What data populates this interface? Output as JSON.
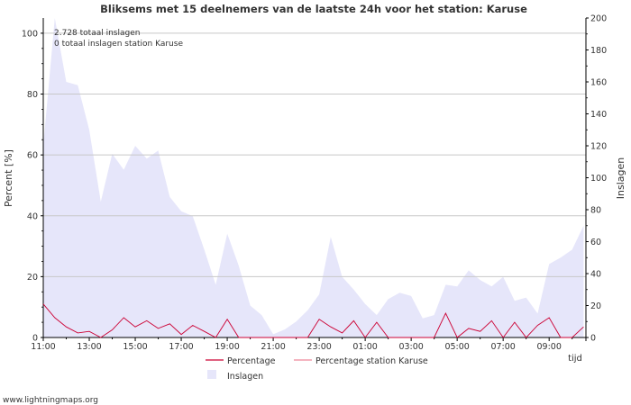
{
  "chart_data": {
    "type": "area",
    "title": "Bliksems met 15 deelnemers van de laatste 24h voor het station: Karuse",
    "xlabel": "tijd",
    "ylabel_left": "Percent   [%]",
    "ylabel_right": "Inslagen",
    "ylim_left": [
      0,
      105
    ],
    "ylim_right": [
      0,
      200
    ],
    "yticks_left": [
      0,
      20,
      40,
      60,
      80,
      100
    ],
    "yticks_right": [
      0,
      20,
      40,
      60,
      80,
      100,
      120,
      140,
      160,
      180,
      200
    ],
    "x_tick_labels": [
      "11:00",
      "13:00",
      "15:00",
      "17:00",
      "19:00",
      "21:00",
      "23:00",
      "01:00",
      "03:00",
      "05:00",
      "07:00",
      "09:00"
    ],
    "x_range_hours": [
      0,
      23.6
    ],
    "annotations": [
      "2.728 totaal inslagen",
      "0 totaal inslagen station Karuse"
    ],
    "legend": {
      "percentage": "Percentage",
      "percentage_station": "Percentage station Karuse",
      "inslagen": "Inslagen"
    },
    "colors": {
      "percentage": "#cc0033",
      "percentage_station": "#ee8899",
      "inslagen_fill": "#e6e6fa",
      "grid": "#c8c8c8",
      "axis": "#000000"
    },
    "series": [
      {
        "name": "Inslagen",
        "axis": "right",
        "x": [
          0,
          0.5,
          1,
          1.5,
          2,
          2.5,
          3,
          3.5,
          4,
          4.5,
          5,
          5.5,
          6,
          6.5,
          7,
          7.5,
          8,
          8.5,
          9,
          9.5,
          10,
          10.5,
          11,
          11.5,
          12,
          12.5,
          13,
          13.5,
          14,
          14.5,
          15,
          15.5,
          16,
          16.5,
          17,
          17.5,
          18,
          18.5,
          19,
          19.5,
          20,
          20.5,
          21,
          21.5,
          22,
          22.5,
          23,
          23.5
        ],
        "values": [
          120,
          200,
          160,
          158,
          130,
          85,
          115,
          105,
          120,
          112,
          117,
          88,
          79,
          76,
          55,
          33,
          65,
          45,
          20,
          14,
          2,
          5,
          10,
          17,
          27,
          63,
          38,
          30,
          21,
          14,
          24,
          28,
          26,
          12,
          14,
          33,
          32,
          42,
          36,
          32,
          38,
          23,
          25,
          15,
          46,
          50,
          55,
          70
        ]
      },
      {
        "name": "Percentage",
        "axis": "left",
        "x": [
          0,
          0.5,
          1,
          1.5,
          2,
          2.5,
          3,
          3.5,
          4,
          4.5,
          5,
          5.5,
          6,
          6.5,
          7,
          7.5,
          8,
          8.5,
          9,
          9.5,
          10,
          10.5,
          11,
          11.5,
          12,
          12.5,
          13,
          13.5,
          14,
          14.5,
          15,
          15.5,
          16,
          16.5,
          17,
          17.5,
          18,
          18.5,
          19,
          19.5,
          20,
          20.5,
          21,
          21.5,
          22,
          22.5,
          23,
          23.5
        ],
        "values": [
          11,
          6.5,
          3.5,
          1.5,
          2,
          0,
          2.5,
          6.5,
          3.5,
          5.5,
          3,
          4.5,
          1,
          4,
          2,
          0,
          6,
          0,
          0,
          0,
          0,
          0,
          0,
          0,
          6,
          3.5,
          1.5,
          5.5,
          0,
          5,
          0,
          0,
          0,
          0,
          0,
          8,
          0,
          3,
          2,
          5.5,
          0,
          5,
          0,
          4,
          6.5,
          0,
          0,
          3.5
        ]
      },
      {
        "name": "Percentage station Karuse",
        "axis": "left",
        "values": []
      }
    ]
  },
  "footer": {
    "source": "www.lightningmaps.org"
  }
}
